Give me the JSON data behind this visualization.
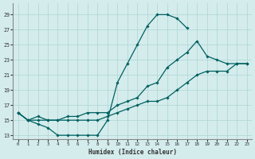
{
  "xlabel": "Humidex (Indice chaleur)",
  "background_color": "#d4ecec",
  "grid_color": "#aed4d4",
  "line_color": "#006060",
  "xlim": [
    -0.5,
    23.5
  ],
  "ylim": [
    12.5,
    30.5
  ],
  "xticks": [
    0,
    1,
    2,
    3,
    4,
    5,
    6,
    7,
    8,
    9,
    10,
    11,
    12,
    13,
    14,
    15,
    16,
    17,
    18,
    19,
    20,
    21,
    22,
    23
  ],
  "yticks": [
    13,
    15,
    17,
    19,
    21,
    23,
    25,
    27,
    29
  ],
  "series": [
    {
      "x": [
        0,
        1,
        2,
        3,
        4,
        5,
        6,
        7,
        8,
        9,
        10,
        11,
        12,
        13,
        14,
        15,
        16,
        17
      ],
      "y": [
        16,
        15,
        14.5,
        14,
        13,
        13,
        13,
        13,
        13,
        15,
        20,
        22.5,
        25,
        27.5,
        29,
        29,
        28.5,
        27.2
      ]
    },
    {
      "x": [
        0,
        1,
        2,
        3,
        4,
        5,
        6,
        7,
        8,
        9,
        10,
        11,
        12,
        13,
        14,
        15,
        16,
        17,
        18,
        19,
        20,
        21,
        22,
        23
      ],
      "y": [
        16,
        15,
        15.5,
        15,
        15,
        15.5,
        15.5,
        16,
        16,
        16,
        17,
        17.5,
        18,
        19.5,
        20,
        22,
        23,
        24,
        25.5,
        23.5,
        23,
        22.5,
        22.5,
        22.5
      ]
    },
    {
      "x": [
        0,
        1,
        2,
        3,
        4,
        5,
        6,
        7,
        8,
        9,
        10,
        11,
        12,
        13,
        14,
        15,
        16,
        17,
        18,
        19,
        20,
        21,
        22,
        23
      ],
      "y": [
        16,
        15,
        15,
        15,
        15,
        15,
        15,
        15,
        15,
        15.5,
        16,
        16.5,
        17,
        17.5,
        17.5,
        18,
        19,
        20,
        21,
        21.5,
        21.5,
        21.5,
        22.5,
        22.5
      ]
    }
  ]
}
